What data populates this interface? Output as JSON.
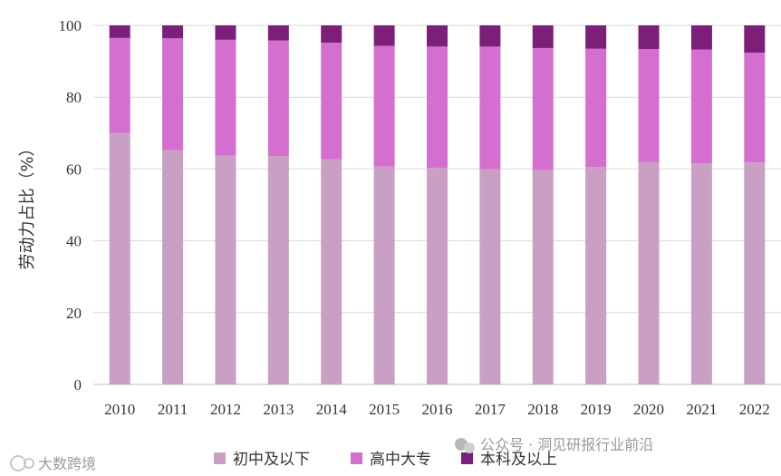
{
  "chart_data": {
    "type": "bar",
    "stacked": true,
    "categories": [
      "2010",
      "2011",
      "2012",
      "2013",
      "2014",
      "2015",
      "2016",
      "2017",
      "2018",
      "2019",
      "2020",
      "2021",
      "2022"
    ],
    "series": [
      {
        "name": "初中及以下",
        "color": "#c9a0c4",
        "values": [
          70.0,
          65.3,
          63.7,
          63.6,
          62.7,
          60.7,
          60.3,
          60.0,
          59.7,
          60.6,
          61.9,
          61.6,
          61.8
        ]
      },
      {
        "name": "高中大专",
        "color": "#d56fcf",
        "values": [
          26.5,
          31.1,
          32.3,
          32.2,
          32.5,
          33.6,
          33.8,
          34.1,
          34.0,
          32.9,
          31.5,
          31.7,
          30.6
        ]
      },
      {
        "name": "本科及以上",
        "color": "#7b1f78",
        "values": [
          3.5,
          3.6,
          4.0,
          4.2,
          4.8,
          5.7,
          5.9,
          5.9,
          6.3,
          6.5,
          6.6,
          6.7,
          7.6
        ]
      }
    ],
    "ylabel": "劳动力占比（%）",
    "ylim": [
      0,
      100
    ],
    "yticks": [
      "0",
      "20",
      "40",
      "60",
      "80",
      "100"
    ],
    "grid": true,
    "legend_position": "bottom"
  },
  "watermarks": {
    "bottom_right": "公众号 · 洞见研报行业前沿",
    "bottom_left": "大数跨境"
  }
}
